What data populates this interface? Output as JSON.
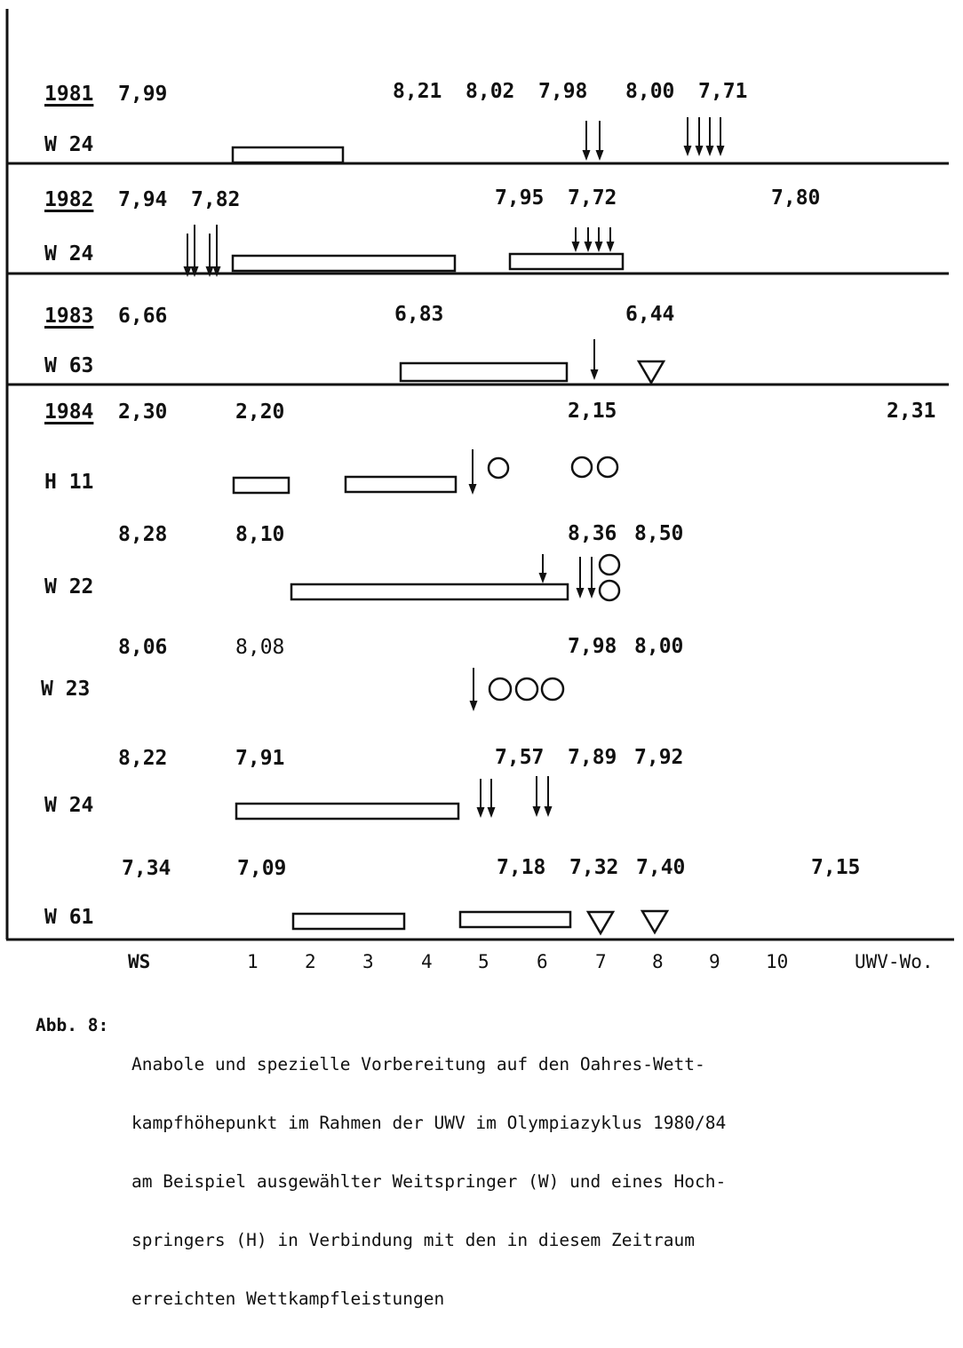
{
  "sections": [
    {
      "year": "1981",
      "rows": [
        {
          "athlete": "W 24",
          "values": [
            "7,99",
            "8,21",
            "8,02",
            "7,98",
            "8,00",
            "7,71"
          ],
          "bars": 1,
          "arrows": 6
        }
      ]
    },
    {
      "year": "1982",
      "rows": [
        {
          "athlete": "W 24",
          "values": [
            "7,94",
            "7,82",
            "7,95",
            "7,72",
            "7,80"
          ],
          "bars": 2,
          "arrows": 8
        }
      ]
    },
    {
      "year": "1983",
      "rows": [
        {
          "athlete": "W 63",
          "values": [
            "6,66",
            "6,83",
            "6,44"
          ],
          "bars": 1,
          "arrows": 1,
          "triangles": 1
        }
      ]
    },
    {
      "year": "1984",
      "rows": [
        {
          "athlete": "H 11",
          "values": [
            "2,30",
            "2,20",
            "2,15",
            "2,31"
          ],
          "bars": 2,
          "arrows": 1,
          "circles": 3
        },
        {
          "athlete": "W 22",
          "values": [
            "8,28",
            "8,10",
            "8,36",
            "8,50"
          ],
          "bars": 1,
          "arrows": 3,
          "circles": 2
        },
        {
          "athlete": "W 23",
          "values": [
            "8,06",
            "8,08",
            "7,98",
            "8,00"
          ],
          "bars": 0,
          "arrows": 1,
          "circles": 3
        },
        {
          "athlete": "W 24",
          "values": [
            "8,22",
            "7,91",
            "7,57",
            "7,89",
            "7,92"
          ],
          "bars": 1,
          "arrows": 4
        },
        {
          "athlete": "W 61",
          "values": [
            "7,34",
            "7,09",
            "7,18",
            "7,32",
            "7,40",
            "7,15"
          ],
          "bars": 2,
          "triangles": 2
        }
      ]
    }
  ],
  "x_axis": [
    "WS",
    "1",
    "2",
    "3",
    "4",
    "5",
    "6",
    "7",
    "8",
    "9",
    "10",
    "UWV-Wo."
  ],
  "caption": {
    "label": "Abb. 8:",
    "lines": [
      "Anabole und spezielle Vorbereitung auf den Oahres-Wett-",
      "kampfhöhepunkt im Rahmen der UWV im Olympiazyklus 1980/84",
      "am Beispiel ausgewählter Weitspringer (W) und eines Hoch-",
      "springers (H) in Verbindung mit den in diesem Zeitraum",
      "erreichten Wettkampfleistungen"
    ]
  },
  "colors": {
    "ink": "#111111",
    "paper": "#ffffff"
  }
}
